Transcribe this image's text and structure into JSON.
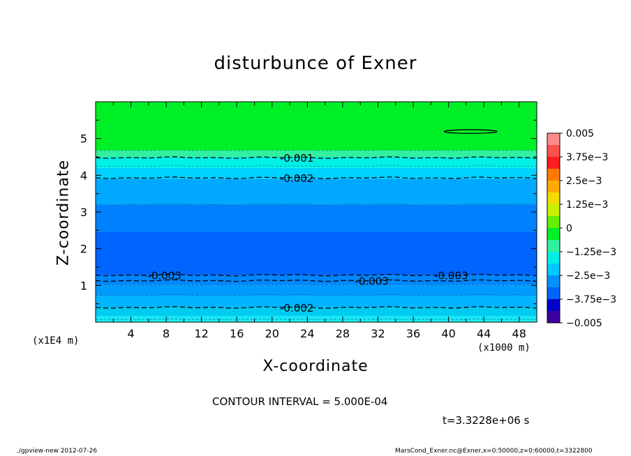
{
  "chart_data": {
    "type": "heatmap",
    "title": "disturbunce of Exner",
    "xlabel": "X-coordinate",
    "ylabel": "Z-coordinate",
    "x_unit_label": "(x1000 m)",
    "y_unit_label": "(x1E4 m)",
    "xlim": [
      0,
      50
    ],
    "ylim": [
      0,
      6
    ],
    "x_ticks": [
      4,
      8,
      12,
      16,
      20,
      24,
      28,
      32,
      36,
      40,
      44,
      48
    ],
    "y_ticks": [
      1,
      2,
      3,
      4,
      5
    ],
    "contour_interval_text": "CONTOUR INTERVAL = 5.000E-04",
    "time_text": "t=3.3228e+06 s",
    "level_bands": [
      {
        "z0": 0.0,
        "z1": 0.05,
        "value": -0.00175,
        "color": "#19f0e8"
      },
      {
        "z0": 0.05,
        "z1": 0.17,
        "value": -0.00225,
        "color": "#14e6f5"
      },
      {
        "z0": 0.17,
        "z1": 0.4,
        "value": -0.00225,
        "color": "#00ccf0"
      },
      {
        "z0": 0.4,
        "z1": 0.72,
        "value": -0.00275,
        "color": "#00b4ff"
      },
      {
        "z0": 0.72,
        "z1": 1.02,
        "value": -0.00325,
        "color": "#009bff"
      },
      {
        "z0": 1.02,
        "z1": 1.28,
        "value": -0.00325,
        "color": "#0087ff"
      },
      {
        "z0": 1.28,
        "z1": 2.45,
        "value": -0.00375,
        "color": "#0064ff"
      },
      {
        "z0": 2.45,
        "z1": 3.2,
        "value": -0.00325,
        "color": "#0082ff"
      },
      {
        "z0": 3.2,
        "z1": 3.9,
        "value": -0.00275,
        "color": "#00a8ff"
      },
      {
        "z0": 3.9,
        "z1": 4.2,
        "value": -0.00225,
        "color": "#00d2ff"
      },
      {
        "z0": 4.2,
        "z1": 4.5,
        "value": -0.00175,
        "color": "#00f0e6"
      },
      {
        "z0": 4.5,
        "z1": 4.68,
        "value": -0.00075,
        "color": "#32f0a0"
      },
      {
        "z0": 4.68,
        "z1": 6.0,
        "value": 0.00025,
        "color": "#00f028"
      }
    ],
    "contours": [
      {
        "value": -0.001,
        "z": 4.48,
        "label": "-0.001",
        "label_x": [
          22.8
        ]
      },
      {
        "value": -0.002,
        "z": 3.93,
        "label": "-0.002",
        "label_x": [
          22.8
        ]
      },
      {
        "value": -0.003,
        "z": 1.28,
        "label": "-0.003",
        "label_x": [
          7.8,
          40.3
        ]
      },
      {
        "value": -0.003,
        "z": 1.13,
        "label": "-0.003",
        "label_x": [
          31.3
        ]
      },
      {
        "value": -0.002,
        "z": 0.4,
        "label": "-0.002",
        "label_x": [
          22.8
        ]
      }
    ],
    "minor_contours_z": [
      0.07,
      0.74,
      1.02,
      3.2,
      4.25,
      4.68
    ],
    "closed_contour": {
      "x0": 39.5,
      "x1": 45.5,
      "z": 5.19
    },
    "colorbar": {
      "ticks": [
        {
          "value": 0.005,
          "label": "0.005"
        },
        {
          "value": 0.00375,
          "label": "3.75e-3"
        },
        {
          "value": 0.0025,
          "label": "2.5e-3"
        },
        {
          "value": 0.00125,
          "label": "1.25e-3"
        },
        {
          "value": 0,
          "label": "0"
        },
        {
          "value": -0.00125,
          "label": "-1.25e-3"
        },
        {
          "value": -0.0025,
          "label": "-2.5e-3"
        },
        {
          "value": -0.00375,
          "label": "-3.75e-3"
        },
        {
          "value": -0.005,
          "label": "-0.005"
        }
      ],
      "colors_top_to_bottom": [
        "#ff8c8c",
        "#ff5050",
        "#ff1e1e",
        "#ff7800",
        "#ffaa00",
        "#f0dc00",
        "#c8f000",
        "#64f000",
        "#00f028",
        "#32f0a0",
        "#00f0e6",
        "#00c8ff",
        "#0090ff",
        "#0064ff",
        "#0000c8",
        "#3c00a0"
      ]
    }
  },
  "footer": {
    "left": "./gpview-new  2012-07-26",
    "right": "MarsCond_Exner.nc@Exner,x=0:50000,z=0:60000,t=3322800"
  }
}
